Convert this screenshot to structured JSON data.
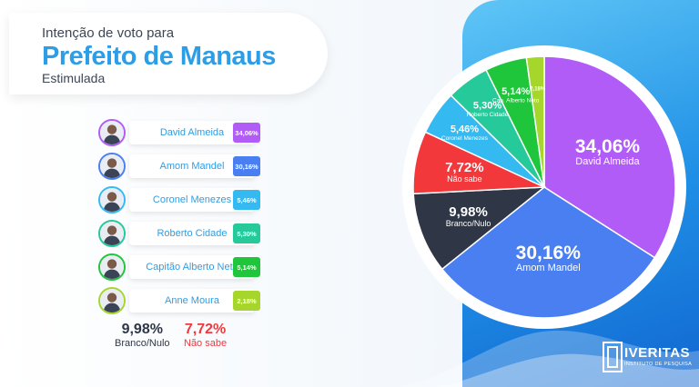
{
  "title": {
    "line1": "Intenção de voto para",
    "line2": "Prefeito de Manaus",
    "line3": "Estimulada"
  },
  "colors": {
    "accent": "#2d9ee6",
    "blank": "#2f3747",
    "undecided": "#f2383b"
  },
  "candidates": [
    {
      "name": "David Almeida",
      "value": "34,06%",
      "color": "#b15cf6",
      "avatar_icon": "person-avatar-icon"
    },
    {
      "name": "Amom Mandel",
      "value": "30,16%",
      "color": "#4a7ff1",
      "avatar_icon": "person-avatar-icon"
    },
    {
      "name": "Coronel Menezes",
      "value": "5,46%",
      "color": "#35b9f1",
      "avatar_icon": "person-avatar-icon"
    },
    {
      "name": "Roberto Cidade",
      "value": "5,30%",
      "color": "#26c99a",
      "avatar_icon": "person-avatar-icon"
    },
    {
      "name": "Capitão Alberto Neto",
      "value": "5,14%",
      "color": "#1fc53a",
      "avatar_icon": "person-avatar-icon"
    },
    {
      "name": "Anne Moura",
      "value": "2,18%",
      "color": "#a6d62b",
      "avatar_icon": "person-avatar-icon"
    }
  ],
  "extras": {
    "blank": {
      "value": "9,98%",
      "label": "Branco/Nulo"
    },
    "undecided": {
      "value": "7,72%",
      "label": "Não sabe"
    }
  },
  "chart_data": {
    "type": "pie",
    "title": "Prefeito de Manaus",
    "slices": [
      {
        "label": "David Almeida",
        "value": 34.06,
        "text": "34,06%",
        "color": "#b15cf6"
      },
      {
        "label": "Amom Mandel",
        "value": 30.16,
        "text": "30,16%",
        "color": "#4a7ff1"
      },
      {
        "label": "Branco/Nulo",
        "value": 9.98,
        "text": "9,98%",
        "color": "#2f3747"
      },
      {
        "label": "Não sabe",
        "value": 7.72,
        "text": "7,72%",
        "color": "#f2383b"
      },
      {
        "label": "Coronel Menezes",
        "value": 5.46,
        "text": "5,46%",
        "color": "#35b9f1"
      },
      {
        "label": "Roberto Cidade",
        "value": 5.3,
        "text": "5,30%",
        "color": "#26c99a"
      },
      {
        "label": "Cap. Alberto Neto",
        "value": 5.14,
        "text": "5,14%",
        "color": "#1fc53a"
      },
      {
        "label": "",
        "value": 2.18,
        "text": "2,18%",
        "color": "#a6d62b"
      }
    ]
  },
  "logo": {
    "word": "IVERITAS",
    "sub": "INSTITUTO DE PESQUISA",
    "icon": "veritas-logo-icon"
  }
}
